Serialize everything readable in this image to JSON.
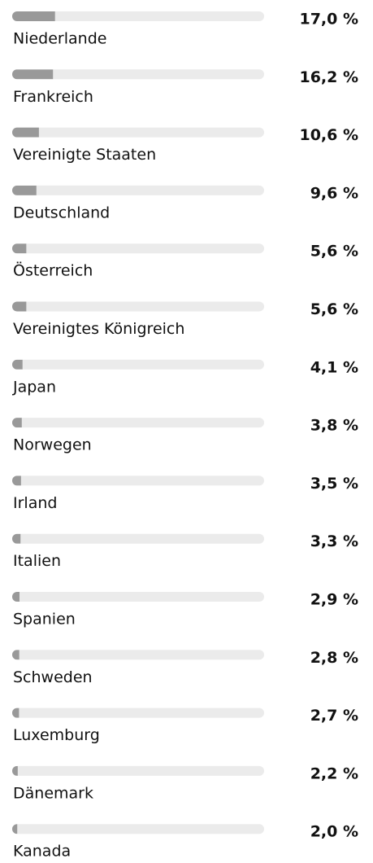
{
  "chart_data": {
    "type": "bar",
    "categories": [
      "Niederlande",
      "Frankreich",
      "Vereinigte Staaten",
      "Deutschland",
      "Österreich",
      "Vereinigtes Königreich",
      "Japan",
      "Norwegen",
      "Irland",
      "Italien",
      "Spanien",
      "Schweden",
      "Luxemburg",
      "Dänemark",
      "Kanada"
    ],
    "values": [
      17.0,
      16.2,
      10.6,
      9.6,
      5.6,
      5.6,
      4.1,
      3.8,
      3.5,
      3.3,
      2.9,
      2.8,
      2.7,
      2.2,
      2.0
    ],
    "value_labels": [
      "17,0 %",
      "16,2 %",
      "10,6 %",
      "9,6 %",
      "5,6 %",
      "5,6 %",
      "4,1 %",
      "3,8 %",
      "3,5 %",
      "3,3 %",
      "2,9 %",
      "2,8 %",
      "2,7 %",
      "2,2 %",
      "2,0 %"
    ],
    "color": "#999999",
    "track_color": "#ebebeb",
    "xlim": [
      0,
      100
    ]
  }
}
